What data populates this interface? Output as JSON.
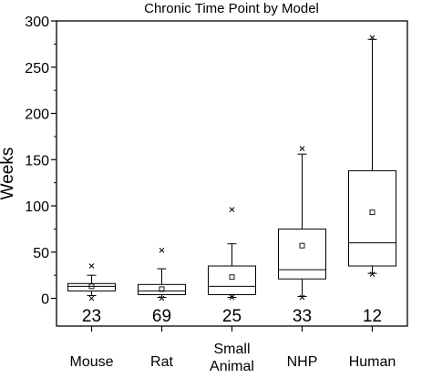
{
  "chart_data": {
    "type": "box",
    "title": "Chronic Time Point by Model",
    "xlabel": "",
    "ylabel": "Weeks",
    "ylim": [
      -30,
      300
    ],
    "yticks": [
      0,
      50,
      100,
      150,
      200,
      250,
      300
    ],
    "grid": false,
    "legend": "none",
    "categories": [
      {
        "label_lines": [
          "Mouse"
        ]
      },
      {
        "label_lines": [
          "Rat"
        ]
      },
      {
        "label_lines": [
          "Small",
          "Animal"
        ]
      },
      {
        "label_lines": [
          "NHP"
        ]
      },
      {
        "label_lines": [
          "Human"
        ]
      }
    ],
    "boxes": [
      {
        "category": "Mouse",
        "q1": 8,
        "median": 13,
        "q3": 16,
        "whisker_low": 3,
        "whisker_high": 25,
        "mean": 13,
        "min": 0,
        "max": 35,
        "n": "23"
      },
      {
        "category": "Rat",
        "q1": 4,
        "median": 8,
        "q3": 15,
        "whisker_low": 1,
        "whisker_high": 32,
        "mean": 10,
        "min": 0,
        "max": 52,
        "n": "69"
      },
      {
        "category": "Small Animal",
        "q1": 4,
        "median": 13,
        "q3": 35,
        "whisker_low": 1,
        "whisker_high": 59,
        "mean": 23,
        "min": 1,
        "max": 96,
        "n": "25"
      },
      {
        "category": "NHP",
        "q1": 21,
        "median": 31,
        "q3": 75,
        "whisker_low": 2,
        "whisker_high": 156,
        "mean": 57,
        "min": 1,
        "max": 162,
        "n": "33"
      },
      {
        "category": "Human",
        "q1": 35,
        "median": 60,
        "q3": 138,
        "whisker_low": 27,
        "whisker_high": 280,
        "mean": 93,
        "min": 26,
        "max": 282,
        "n": "12"
      }
    ]
  }
}
